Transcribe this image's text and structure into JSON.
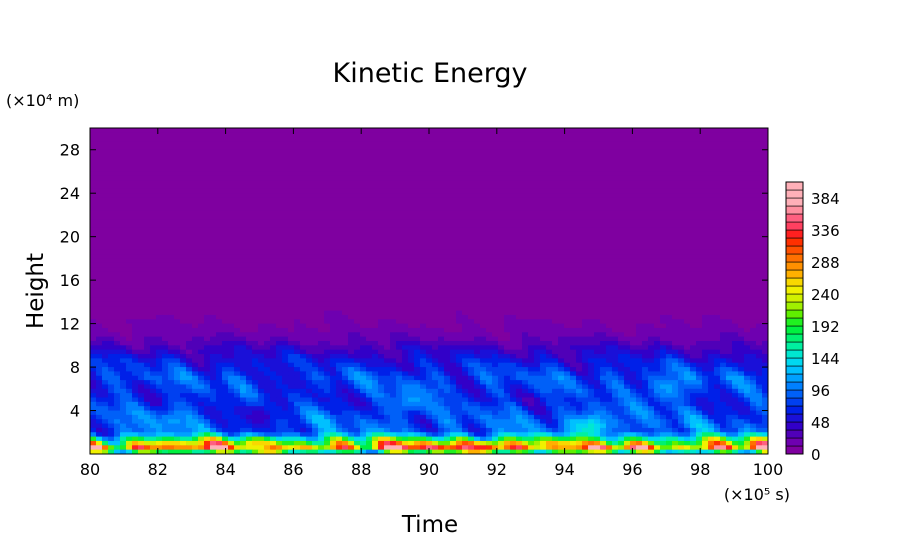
{
  "chart_data": {
    "type": "heatmap",
    "title": "Kinetic Energy",
    "xlabel": "Time",
    "ylabel": "Height",
    "x_unit": "(×10⁵ s)",
    "y_unit": "(×10⁴ m)",
    "xlim": [
      80,
      100
    ],
    "ylim": [
      0,
      30
    ],
    "x_ticks": [
      80,
      82,
      84,
      86,
      88,
      90,
      92,
      94,
      96,
      98,
      100
    ],
    "x_tick_labels": [
      "80",
      "82",
      "84",
      "86",
      "88",
      "90",
      "92",
      "94",
      "96",
      "98",
      "100"
    ],
    "y_ticks": [
      4,
      8,
      12,
      16,
      20,
      24,
      28
    ],
    "y_tick_labels": [
      "4",
      "8",
      "12",
      "16",
      "20",
      "24",
      "28"
    ],
    "colorbar": {
      "min": 0,
      "max": 408,
      "step": 12,
      "ticks": [
        0,
        48,
        96,
        144,
        192,
        240,
        288,
        336,
        384
      ],
      "tick_labels": [
        "0",
        "48",
        "96",
        "144",
        "192",
        "240",
        "288",
        "336",
        "384"
      ],
      "colors": [
        "#7f00a0",
        "#6e00b0",
        "#5000b8",
        "#3200c8",
        "#1a10d8",
        "#0020e8",
        "#0040f0",
        "#0060f8",
        "#0080ff",
        "#00a0ff",
        "#00c0ff",
        "#00d8f0",
        "#00e8d0",
        "#00f0a0",
        "#00f070",
        "#00f040",
        "#20f020",
        "#60f000",
        "#a0f000",
        "#d0f000",
        "#f0f000",
        "#f8d800",
        "#ffb000",
        "#ff9000",
        "#ff7000",
        "#ff5000",
        "#ff3000",
        "#ff2020",
        "#ff4060",
        "#ff6080",
        "#ff90a0",
        "#ffb0b8",
        "#ffb0b8",
        "#ffb0b8"
      ]
    },
    "profile_heights": [
      0,
      0.6,
      1.2,
      2,
      3,
      5,
      7,
      8.5,
      9.5,
      10.5,
      11.5,
      12.5,
      13.5,
      14.5,
      15.5,
      17,
      19,
      30
    ],
    "profile_values": [
      120,
      300,
      210,
      90,
      85,
      70,
      80,
      60,
      42,
      24,
      14,
      10,
      8,
      6,
      5,
      3,
      1,
      0
    ],
    "features": [
      {
        "x": 82.3,
        "y": 0.7,
        "value": 300
      },
      {
        "x": 85.0,
        "y": 0.7,
        "value": 240
      },
      {
        "x": 91.6,
        "y": 0.6,
        "value": 330
      },
      {
        "x": 94.0,
        "y": 0.7,
        "value": 270
      },
      {
        "x": 85.0,
        "y": 3.5,
        "value": 40
      },
      {
        "x": 94.8,
        "y": 2.5,
        "value": 150
      },
      {
        "x": 82.5,
        "y": 3.0,
        "value": 110
      },
      {
        "x": 86.0,
        "y": 7.0,
        "value": 55
      },
      {
        "x": 89.5,
        "y": 5.0,
        "value": 110
      },
      {
        "x": 97.0,
        "y": 6.0,
        "value": 110
      },
      {
        "x": 84.5,
        "y": 15.5,
        "value": 8
      },
      {
        "x": 81.0,
        "y": 17.5,
        "value": 8
      },
      {
        "x": 85.1,
        "y": 16.5,
        "value": 8
      },
      {
        "x": 88.0,
        "y": 17.5,
        "value": 6
      },
      {
        "x": 99.2,
        "y": 17.5,
        "value": 7
      }
    ]
  }
}
